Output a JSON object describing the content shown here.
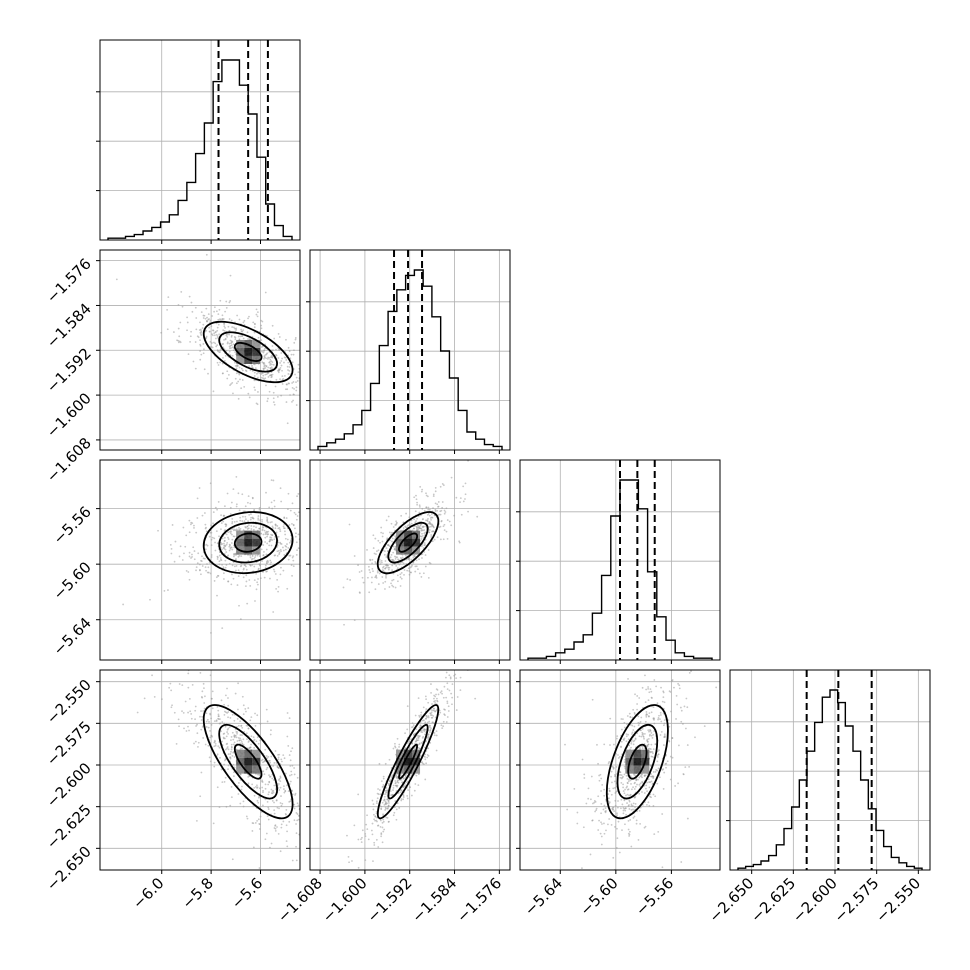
{
  "chart_data": {
    "type": "corner",
    "grid": true,
    "parameters": [
      {
        "index": 0,
        "range": [
          -6.25,
          -5.44
        ],
        "ticks": [
          -6.0,
          -5.8,
          -5.6
        ],
        "tick_labels": [
          "−6.0",
          "−5.8",
          "−5.6"
        ],
        "quantiles": [
          -5.77,
          -5.65,
          -5.57
        ],
        "median": -5.65,
        "sigma": 0.09
      },
      {
        "index": 1,
        "range": [
          -1.6098,
          -1.5741
        ],
        "ticks": [
          -1.608,
          -1.6,
          -1.592,
          -1.584,
          -1.576
        ],
        "tick_labels": [
          "−1.608",
          "−1.600",
          "−1.592",
          "−1.584",
          "−1.576"
        ],
        "quantiles": [
          -1.5948,
          -1.5923,
          -1.5898
        ],
        "median": -1.5923,
        "sigma": 0.0027
      },
      {
        "index": 2,
        "range": [
          -5.669,
          -5.525
        ],
        "ticks": [
          -5.64,
          -5.6,
          -5.56
        ],
        "tick_labels": [
          "−5.64",
          "−5.60",
          "−5.56"
        ],
        "quantiles": [
          -5.597,
          -5.5845,
          -5.572
        ],
        "median": -5.5845,
        "sigma": 0.011
      },
      {
        "index": 3,
        "range": [
          -2.663,
          -2.543
        ],
        "ticks": [
          -2.65,
          -2.625,
          -2.6,
          -2.575,
          -2.55
        ],
        "tick_labels": [
          "−2.650",
          "−2.625",
          "−2.600",
          "−2.575",
          "−2.550"
        ],
        "quantiles": [
          -2.617,
          -2.598,
          -2.578
        ],
        "median": -2.598,
        "sigma": 0.017
      }
    ],
    "histograms": [
      {
        "param": 0,
        "counts": [
          1,
          1,
          2,
          3,
          5,
          7,
          10,
          14,
          22,
          32,
          48,
          65,
          88,
          100,
          100,
          86,
          70,
          46,
          20,
          8,
          2
        ]
      },
      {
        "param": 1,
        "counts": [
          2,
          4,
          6,
          9,
          14,
          22,
          37,
          58,
          77,
          89,
          97,
          100,
          91,
          74,
          55,
          40,
          22,
          10,
          6,
          3,
          2
        ]
      },
      {
        "param": 2,
        "counts": [
          1,
          1,
          2,
          4,
          6,
          10,
          14,
          26,
          47,
          80,
          100,
          100,
          84,
          49,
          24,
          11,
          4,
          2,
          1,
          1
        ]
      },
      {
        "param": 3,
        "counts": [
          1,
          2,
          3,
          5,
          8,
          14,
          23,
          35,
          50,
          66,
          82,
          96,
          100,
          93,
          80,
          66,
          50,
          34,
          22,
          13,
          7,
          4,
          2,
          1
        ]
      }
    ],
    "pairs": [
      {
        "x": 0,
        "y": 1,
        "correlation": -0.6
      },
      {
        "x": 0,
        "y": 2,
        "correlation": 0.1
      },
      {
        "x": 1,
        "y": 2,
        "correlation": 0.7
      },
      {
        "x": 0,
        "y": 3,
        "correlation": -0.75
      },
      {
        "x": 1,
        "y": 3,
        "correlation": 0.92
      },
      {
        "x": 2,
        "y": 3,
        "correlation": 0.55
      }
    ]
  }
}
